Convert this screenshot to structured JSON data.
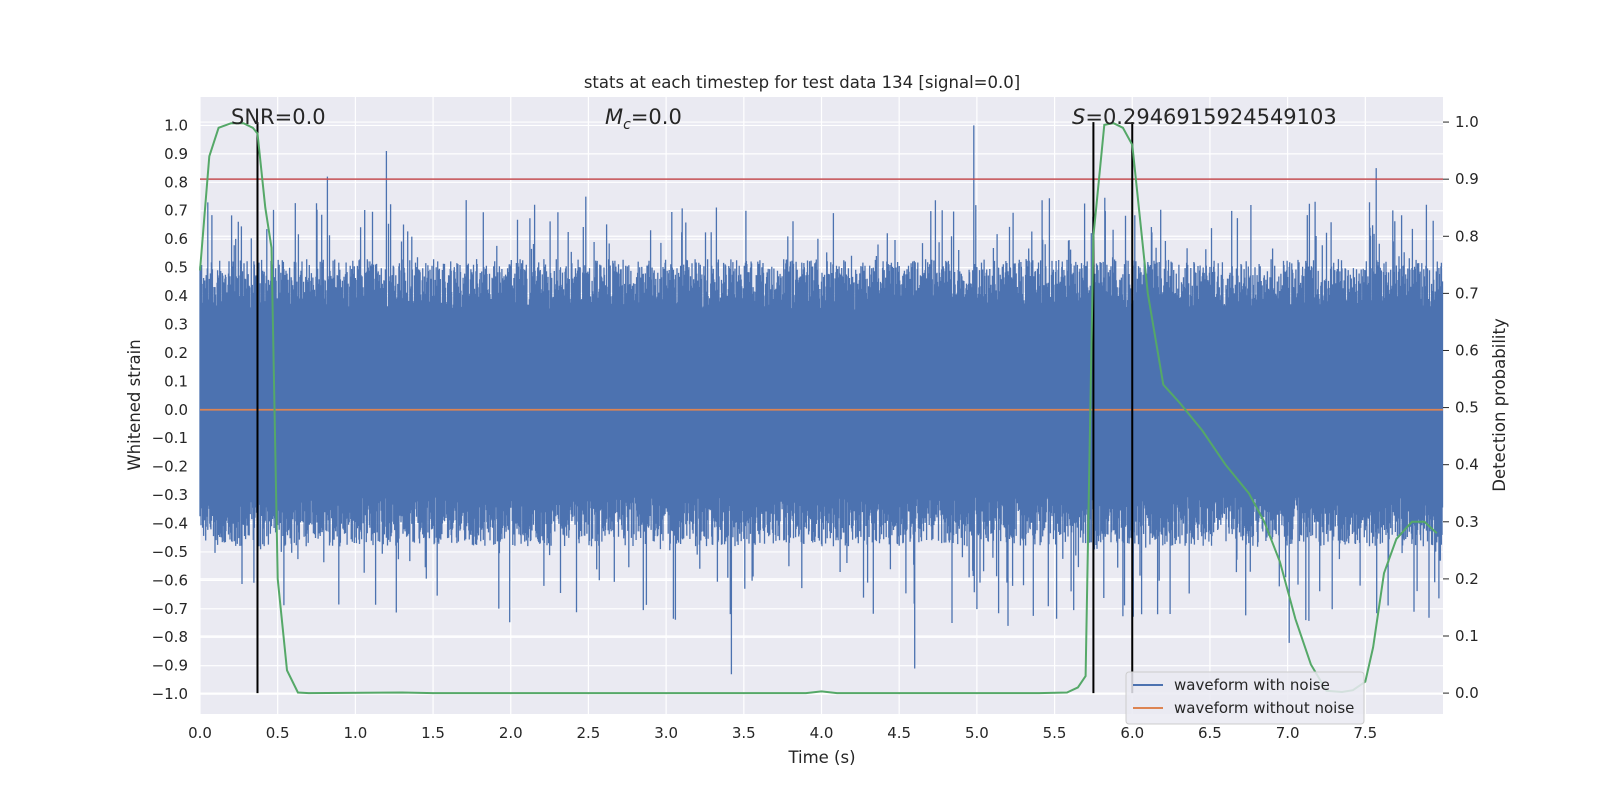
{
  "chart_data": {
    "type": "line",
    "title": "stats at each timestep for test data 134 [signal=0.0]",
    "xlabel": "Time (s)",
    "ylabel": "Whitened strain",
    "y2label": "Detection probability",
    "xlim": [
      0.0,
      8.0
    ],
    "ylim": [
      -1.07,
      1.1
    ],
    "y2lim": [
      -0.0366,
      1.0439
    ],
    "xticks": [
      "0.0",
      "0.5",
      "1.0",
      "1.5",
      "2.0",
      "2.5",
      "3.0",
      "3.5",
      "4.0",
      "4.5",
      "5.0",
      "5.5",
      "6.0",
      "6.5",
      "7.0",
      "7.5"
    ],
    "yticks": [
      "1.0",
      "0.9",
      "0.8",
      "0.7",
      "0.6",
      "0.5",
      "0.4",
      "0.3",
      "0.2",
      "0.1",
      "0.0",
      "-0.1",
      "-0.2",
      "-0.3",
      "-0.4",
      "-0.5",
      "-0.6",
      "-0.7",
      "-0.8",
      "-0.9",
      "-1.0"
    ],
    "y2ticks": [
      "0.0",
      "0.1",
      "0.2",
      "0.3",
      "0.4",
      "0.5",
      "0.6",
      "0.7",
      "0.8",
      "0.9",
      "1.0"
    ],
    "annotations": {
      "snr_prefix": "SNR",
      "snr_value": "=0.0",
      "mc_prefix": "M",
      "mc_sub": "c",
      "mc_value": "=0.0",
      "s_prefix": "S",
      "s_value": "=0.2946915924549103"
    },
    "threshold": {
      "axis": "y2",
      "value": 0.9,
      "color": "#c44e52"
    },
    "vertical_lines": [
      0.37,
      5.75,
      6.0
    ],
    "series": [
      {
        "name": "waveform with noise",
        "color": "#4c72b0",
        "style": "noise",
        "core_band": [
          -0.35,
          0.4
        ],
        "peaks": [
          {
            "x": 0.82,
            "y": 0.82
          },
          {
            "x": 1.2,
            "y": 0.91
          },
          {
            "x": 3.42,
            "y": -0.93
          },
          {
            "x": 4.6,
            "y": -0.91
          },
          {
            "x": 4.98,
            "y": 1.0
          },
          {
            "x": 5.2,
            "y": -0.76
          },
          {
            "x": 7.57,
            "y": 0.85
          },
          {
            "x": 7.01,
            "y": -0.82
          }
        ]
      },
      {
        "name": "waveform without noise",
        "color": "#dd8452",
        "values_const": 0.0
      },
      {
        "name": "detection probability",
        "axis": "y2",
        "color": "#55a868",
        "x": [
          0.0,
          0.06,
          0.12,
          0.2,
          0.28,
          0.34,
          0.37,
          0.42,
          0.46,
          0.5,
          0.56,
          0.63,
          0.7,
          1.3,
          1.5,
          3.5,
          3.9,
          4.0,
          4.1,
          5.4,
          5.58,
          5.65,
          5.7,
          5.75,
          5.82,
          5.88,
          5.94,
          6.0,
          6.1,
          6.2,
          6.3,
          6.45,
          6.6,
          6.75,
          6.85,
          6.95,
          7.05,
          7.15,
          7.25,
          7.35,
          7.42,
          7.5,
          7.55,
          7.62,
          7.7,
          7.8,
          7.88,
          7.96
        ],
        "values": [
          0.74,
          0.94,
          0.99,
          0.998,
          0.998,
          0.99,
          0.98,
          0.85,
          0.78,
          0.2,
          0.04,
          0.001,
          0.0,
          0.001,
          0.0,
          0.0,
          0.0,
          0.003,
          0.0,
          0.0,
          0.001,
          0.01,
          0.03,
          0.8,
          0.995,
          0.998,
          0.99,
          0.96,
          0.7,
          0.54,
          0.51,
          0.46,
          0.4,
          0.35,
          0.3,
          0.23,
          0.13,
          0.05,
          0.004,
          0.002,
          0.005,
          0.02,
          0.08,
          0.21,
          0.27,
          0.3,
          0.3,
          0.28
        ]
      }
    ],
    "legend": [
      "waveform with noise",
      "waveform without noise"
    ],
    "legend_position": "lower-right",
    "grid": true
  }
}
